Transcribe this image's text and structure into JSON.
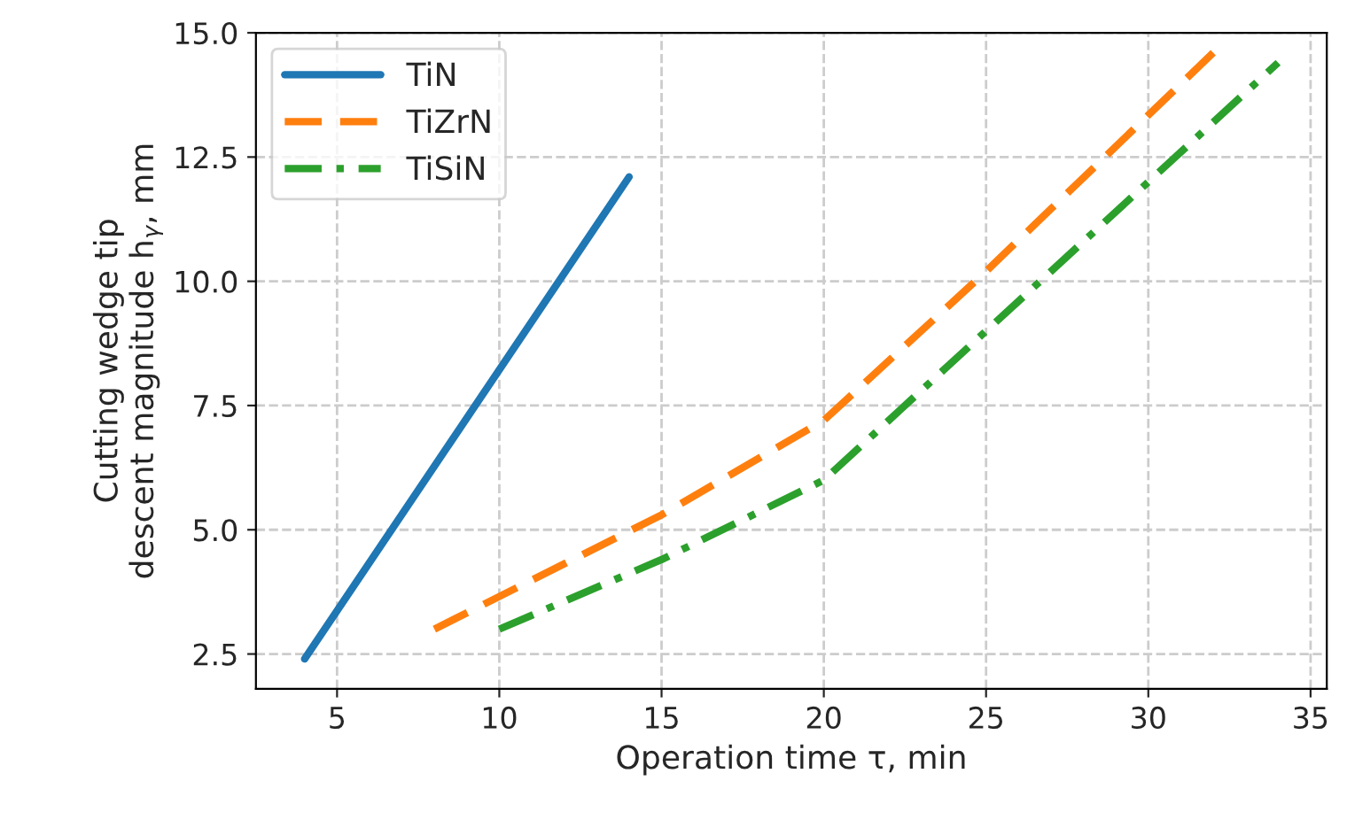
{
  "chart_data": {
    "type": "line",
    "xlabel": "Operation time τ, min",
    "ylabel": "Cutting wedge tip\ndescent magnitude h$_{γ}$, mm",
    "series": [
      {
        "name": "TiN",
        "color": "#1f77b4",
        "line_style": "solid",
        "x": [
          4,
          14
        ],
        "values": [
          2.4,
          12.1
        ]
      },
      {
        "name": "TiZrN",
        "color": "#ff7f0e",
        "line_style": "dashed",
        "x": [
          8,
          15,
          20,
          25,
          32
        ],
        "values": [
          3.0,
          5.3,
          7.2,
          10.2,
          14.6
        ]
      },
      {
        "name": "TiSiN",
        "color": "#2ca02c",
        "line_style": "dashdot",
        "x": [
          10,
          15,
          20,
          25,
          30,
          34
        ],
        "values": [
          3.0,
          4.4,
          6.0,
          9.0,
          12.0,
          14.4
        ]
      }
    ],
    "xlim": [
      2.5,
      35.5
    ],
    "ylim": [
      1.8,
      15.0
    ],
    "xticks": [
      5,
      10,
      15,
      20,
      25,
      30,
      35
    ],
    "yticks": [
      {
        "value": 2.5,
        "label": "2.5"
      },
      {
        "value": 5,
        "label": "5.0"
      },
      {
        "value": 7.5,
        "label": "7.5"
      },
      {
        "value": 10,
        "label": "10.0"
      },
      {
        "value": 12.5,
        "label": "12.5"
      },
      {
        "value": 15,
        "label": "15.0"
      }
    ],
    "grid": true,
    "legend": "top left"
  }
}
